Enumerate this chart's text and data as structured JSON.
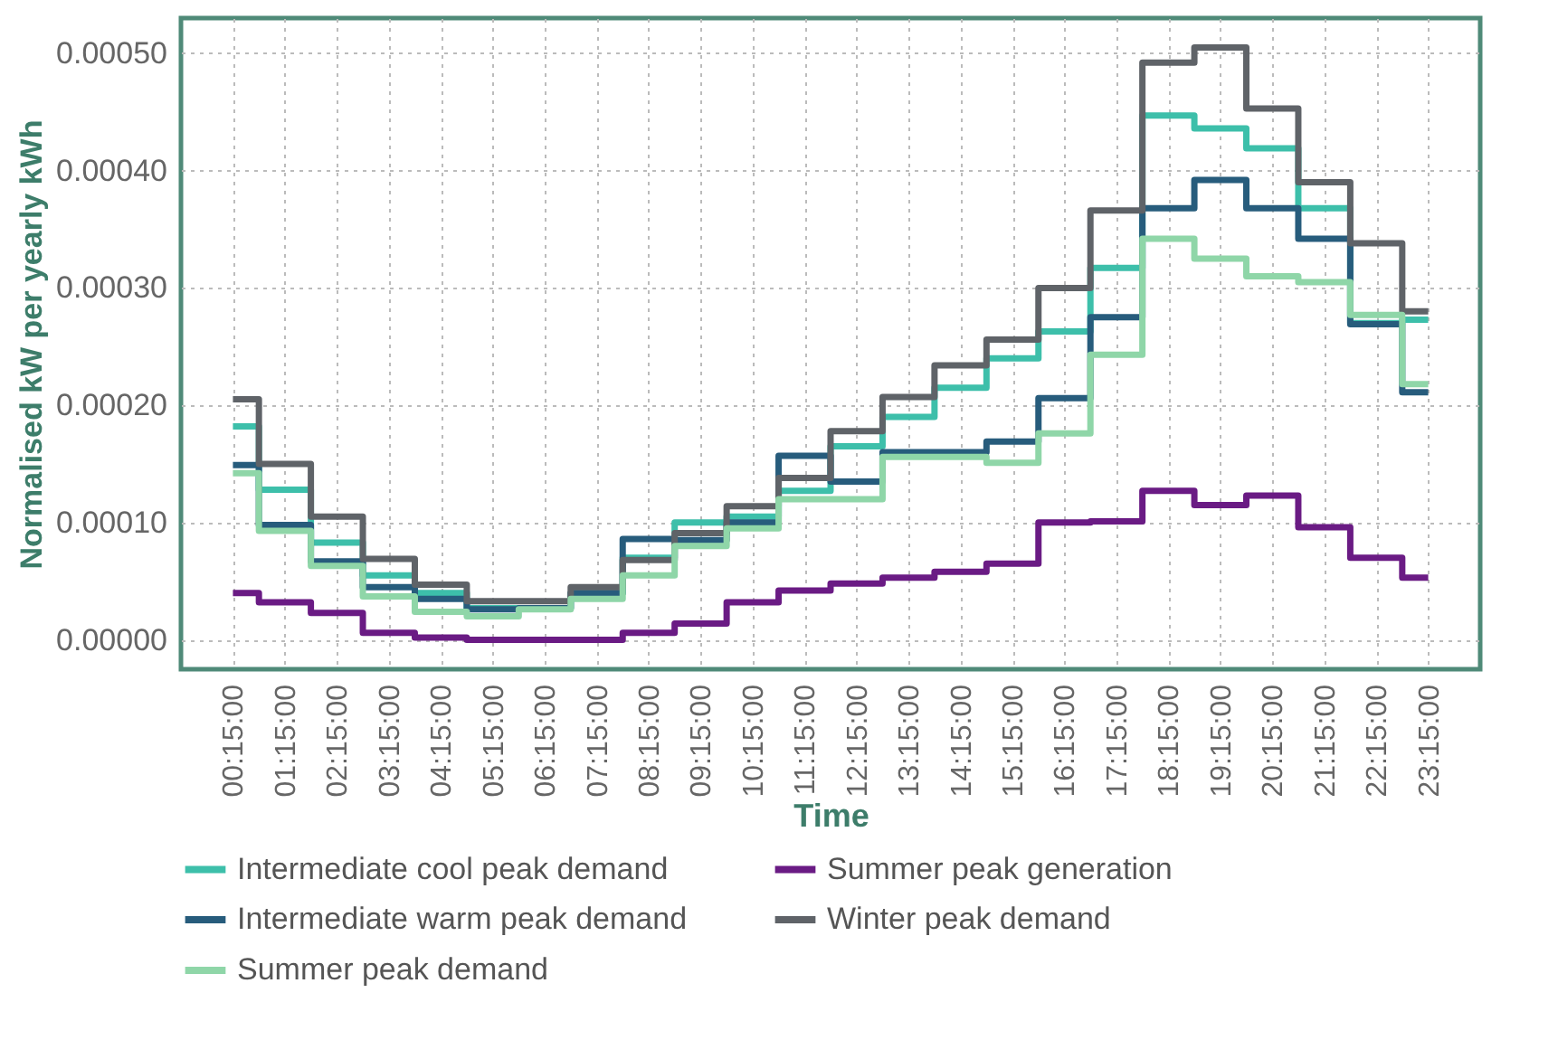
{
  "chart_data": {
    "type": "step",
    "xlabel": "Time",
    "ylabel": "Normalised kW per yearly kWh",
    "categories": [
      "00:15:00",
      "01:15:00",
      "02:15:00",
      "03:15:00",
      "04:15:00",
      "05:15:00",
      "06:15:00",
      "07:15:00",
      "08:15:00",
      "09:15:00",
      "10:15:00",
      "11:15:00",
      "12:15:00",
      "13:15:00",
      "14:15:00",
      "15:15:00",
      "16:15:00",
      "17:15:00",
      "18:15:00",
      "19:15:00",
      "20:15:00",
      "21:15:00",
      "22:15:00",
      "23:15:00"
    ],
    "series": [
      {
        "name": "Intermediate cool peak demand",
        "color": "#3dbfaa",
        "values": [
          0.000182,
          0.000128,
          8.3e-05,
          5.5e-05,
          4e-05,
          2.7e-05,
          2.7e-05,
          4e-05,
          7e-05,
          0.0001,
          0.000105,
          0.000127,
          0.000165,
          0.00019,
          0.000215,
          0.00024,
          0.000263,
          0.000317,
          0.000447,
          0.000436,
          0.000419,
          0.000368,
          0.00027,
          0.000273
        ]
      },
      {
        "name": "Summer peak generation",
        "color": "#6a1b84",
        "values": [
          4e-05,
          3.2e-05,
          2.3e-05,
          6e-06,
          2e-06,
          0.0,
          0.0,
          0.0,
          6e-06,
          1.4e-05,
          3.2e-05,
          4.2e-05,
          4.8e-05,
          5.3e-05,
          5.8e-05,
          6.5e-05,
          0.0001,
          0.000101,
          0.000127,
          0.000115,
          0.000123,
          9.6e-05,
          7e-05,
          5.3e-05
        ]
      },
      {
        "name": "Intermediate warm peak demand",
        "color": "#275c7c",
        "values": [
          0.000149,
          9.8e-05,
          6.7e-05,
          4.5e-05,
          3.5e-05,
          2.6e-05,
          2.7e-05,
          4e-05,
          8.6e-05,
          8.5e-05,
          0.0001,
          0.000157,
          0.000135,
          0.00016,
          0.00016,
          0.000169,
          0.000206,
          0.000275,
          0.000368,
          0.000392,
          0.000368,
          0.000342,
          0.000269,
          0.000211
        ]
      },
      {
        "name": "Winter peak demand",
        "color": "#5f6368",
        "values": [
          0.000205,
          0.00015,
          0.000105,
          6.9e-05,
          4.7e-05,
          3.3e-05,
          3.3e-05,
          4.5e-05,
          6.8e-05,
          9.1e-05,
          0.000114,
          0.000138,
          0.000178,
          0.000207,
          0.000234,
          0.000256,
          0.0003,
          0.000366,
          0.000492,
          0.000505,
          0.000453,
          0.00039,
          0.000338,
          0.00028
        ]
      },
      {
        "name": "Summer peak demand",
        "color": "#8fd6a8",
        "values": [
          0.000142,
          9.3e-05,
          6.3e-05,
          3.7e-05,
          2.4e-05,
          2e-05,
          2.6e-05,
          3.5e-05,
          5.5e-05,
          8e-05,
          9.5e-05,
          0.00012,
          0.00012,
          0.000156,
          0.000156,
          0.000151,
          0.000176,
          0.000243,
          0.000342,
          0.000325,
          0.00031,
          0.000305,
          0.000277,
          0.000218
        ]
      }
    ],
    "ylim": [
      -2.5e-05,
      0.00053
    ],
    "yticks": [
      {
        "value": 0,
        "label": "0.00000"
      },
      {
        "value": 0.0001,
        "label": "0.00010"
      },
      {
        "value": 0.0002,
        "label": "0.00020"
      },
      {
        "value": 0.0003,
        "label": "0.00030"
      },
      {
        "value": 0.0004,
        "label": "0.00040"
      },
      {
        "value": 0.0005,
        "label": "0.00050"
      }
    ],
    "grid": true,
    "legend": "bottom",
    "line_style": "solid"
  }
}
